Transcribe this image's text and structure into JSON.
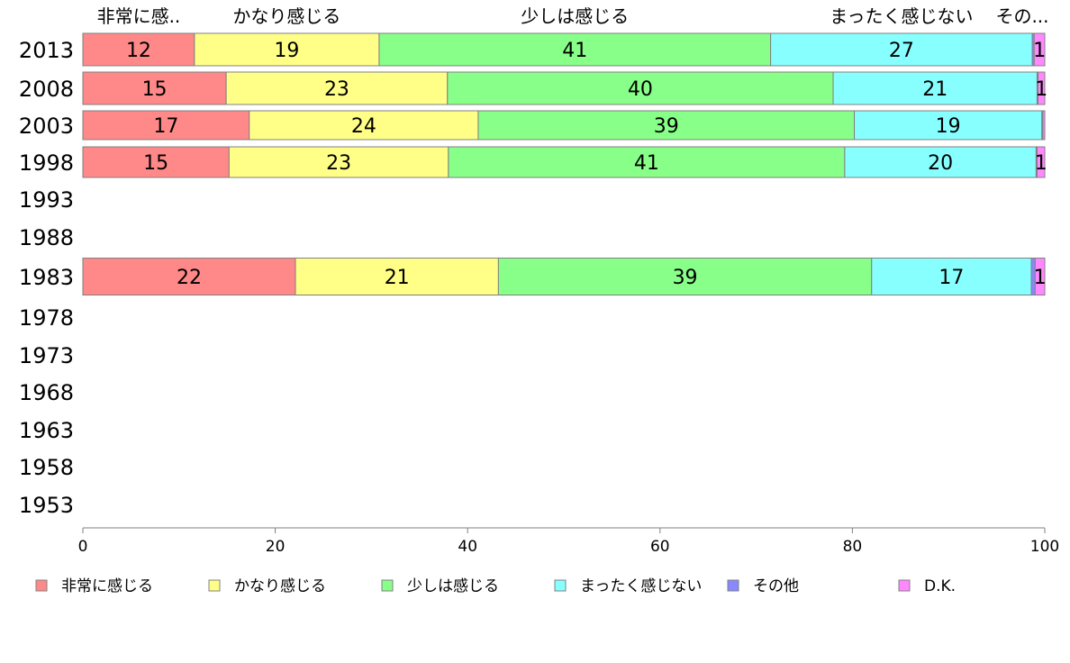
{
  "chart_data": {
    "type": "bar",
    "orientation": "horizontal",
    "stacked": true,
    "years": [
      "2013",
      "2008",
      "2003",
      "1998",
      "1993",
      "1988",
      "1983",
      "1978",
      "1973",
      "1968",
      "1963",
      "1958",
      "1953"
    ],
    "top_labels": [
      "非常に感..",
      "かなり感じる",
      "少しは感じる",
      "まったく感じない",
      "その..."
    ],
    "series": [
      {
        "name": "非常に感じる",
        "color": "#ff8888",
        "values": [
          11.6,
          14.9,
          17.3,
          15.2,
          null,
          null,
          22.1,
          null,
          null,
          null,
          null,
          null,
          null
        ],
        "labels": [
          "12",
          "15",
          "17",
          "15",
          "",
          "",
          "22",
          "",
          "",
          "",
          "",
          "",
          ""
        ]
      },
      {
        "name": "かなり感じる",
        "color": "#ffff88",
        "values": [
          19.2,
          23.0,
          23.8,
          22.8,
          null,
          null,
          21.1,
          null,
          null,
          null,
          null,
          null,
          null
        ],
        "labels": [
          "19",
          "23",
          "24",
          "23",
          "",
          "",
          "21",
          "",
          "",
          "",
          "",
          "",
          ""
        ]
      },
      {
        "name": "少しは感じる",
        "color": "#88ff88",
        "values": [
          40.7,
          40.1,
          39.1,
          41.2,
          null,
          null,
          38.8,
          null,
          null,
          null,
          null,
          null,
          null
        ],
        "labels": [
          "41",
          "40",
          "39",
          "41",
          "",
          "",
          "39",
          "",
          "",
          "",
          "",
          "",
          ""
        ]
      },
      {
        "name": "まったく感じない",
        "color": "#88ffff",
        "values": [
          27.2,
          21.2,
          19.5,
          19.9,
          null,
          null,
          16.6,
          null,
          null,
          null,
          null,
          null,
          null
        ],
        "labels": [
          "27",
          "21",
          "19",
          "20",
          "",
          "",
          "17",
          "",
          "",
          "",
          "",
          "",
          ""
        ]
      },
      {
        "name": "その他",
        "color": "#8888ff",
        "values": [
          0.2,
          0.1,
          0.1,
          0.1,
          null,
          null,
          0.4,
          null,
          null,
          null,
          null,
          null,
          null
        ],
        "labels": [
          "",
          "",
          "",
          "",
          "",
          "",
          "",
          "",
          "",
          "",
          "",
          "",
          ""
        ]
      },
      {
        "name": "D.K.",
        "color": "#ff88ff",
        "values": [
          1.1,
          0.7,
          0.2,
          0.8,
          null,
          null,
          1.0,
          null,
          null,
          null,
          null,
          null,
          null
        ],
        "labels": [
          "1",
          "1",
          "",
          "1",
          "",
          "",
          "1",
          "",
          "",
          "",
          "",
          "",
          ""
        ]
      }
    ],
    "xlim": [
      0,
      100
    ],
    "xticks": [
      "0",
      "20",
      "40",
      "60",
      "80",
      "100"
    ],
    "grid": false,
    "legend_position": "bottom"
  }
}
